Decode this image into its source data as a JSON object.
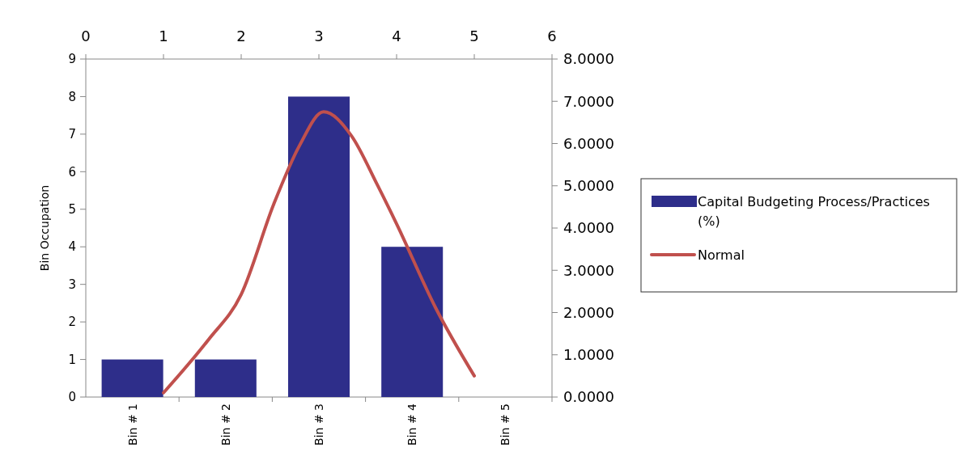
{
  "chart_data": [
    {
      "type": "bar",
      "ylabel": "Bin Occupation",
      "categories": [
        "Bin # 1",
        "Bin # 2",
        "Bin # 3",
        "Bin # 4",
        "Bin # 5"
      ],
      "series": [
        {
          "name": "Capital Budgeting Process/Practices (%)",
          "color": "#2e2e8a",
          "values": [
            1,
            1,
            8,
            4,
            0
          ]
        }
      ],
      "ylim": [
        0,
        9
      ],
      "yticks": [
        0,
        1,
        2,
        3,
        4,
        5,
        6,
        7,
        8,
        9
      ],
      "grid": false,
      "legend": "right"
    },
    {
      "type": "line",
      "series": [
        {
          "name": "Normal",
          "color": "#c0504d",
          "x": [
            1,
            1.58,
            2,
            2.42,
            2.75,
            3.06,
            3.42,
            3.75,
            4,
            4.5,
            5
          ],
          "values": [
            0.1,
            1.36,
            2.43,
            4.57,
            5.95,
            6.75,
            6.18,
            5.03,
            4.1,
            2.12,
            0.5
          ]
        }
      ],
      "xlim": [
        0,
        6
      ],
      "xticks": [
        0,
        1,
        2,
        3,
        4,
        5,
        6
      ],
      "ylim": [
        0,
        8
      ],
      "yticks": [
        {
          "value": 0,
          "label": "0.0000"
        },
        {
          "value": 1,
          "label": "1.0000"
        },
        {
          "value": 2,
          "label": "2.0000"
        },
        {
          "value": 3,
          "label": "3.0000"
        },
        {
          "value": 4,
          "label": "4.0000"
        },
        {
          "value": 5,
          "label": "5.0000"
        },
        {
          "value": 6,
          "label": "6.0000"
        },
        {
          "value": 7,
          "label": "7.0000"
        },
        {
          "value": 8,
          "label": "8.0000"
        }
      ],
      "grid": false,
      "legend": "right"
    }
  ]
}
